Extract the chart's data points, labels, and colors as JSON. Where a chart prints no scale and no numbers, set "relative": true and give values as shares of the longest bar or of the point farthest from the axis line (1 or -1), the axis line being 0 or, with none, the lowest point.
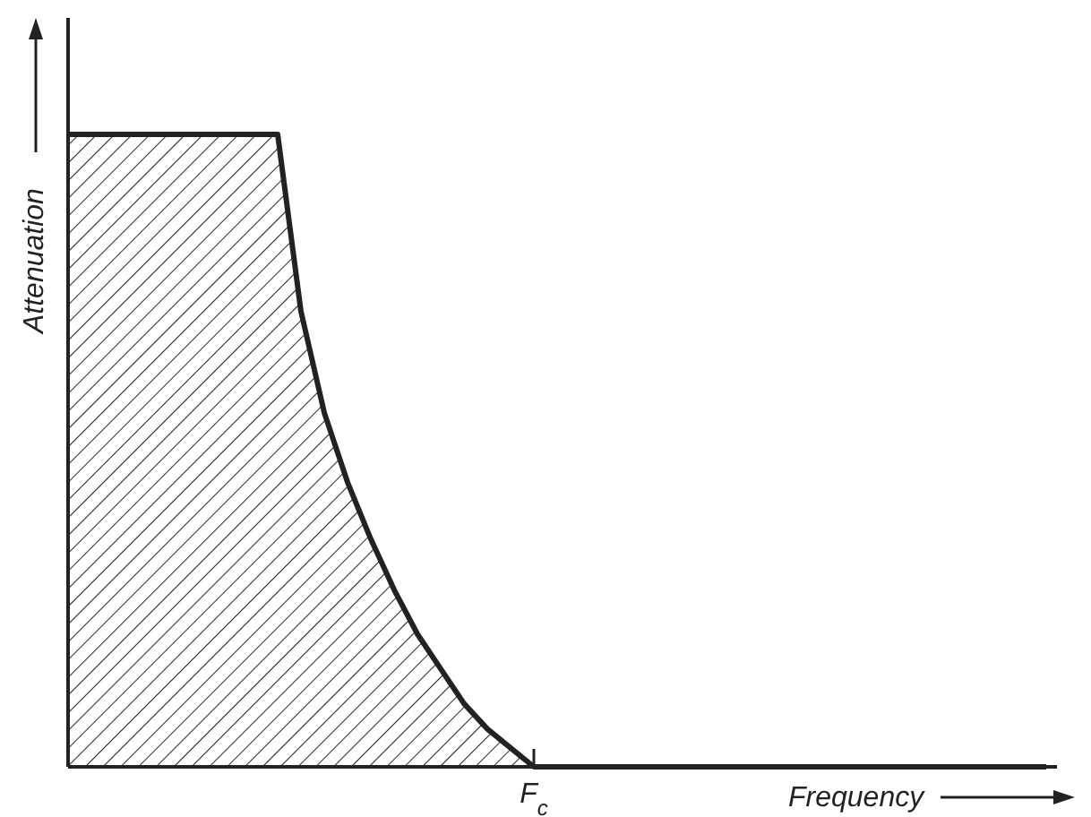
{
  "chart_data": {
    "type": "area",
    "relative": true,
    "xlabel": "Frequency",
    "ylabel": "Attenuation",
    "categories": [
      null,
      null,
      null,
      null,
      null,
      null,
      null,
      null,
      null,
      null,
      null,
      null,
      null,
      null,
      null,
      null,
      null,
      null,
      null,
      null,
      null,
      null,
      null,
      null,
      null,
      null,
      null,
      null,
      null,
      null,
      null,
      null,
      null,
      null,
      null,
      null,
      null,
      null,
      null,
      null,
      null,
      null,
      null
    ],
    "annotations": [
      "F$_{c}$"
    ],
    "series": [
      {
        "color": "#222222",
        "values": [
          1,
          1,
          1,
          1,
          1,
          1,
          1,
          1,
          1,
          1,
          0.72,
          0.56,
          0.45,
          0.36,
          0.28,
          0.21,
          0.155,
          0.1,
          0.06,
          0.03,
          0,
          0,
          0,
          0,
          0,
          0,
          0,
          0,
          0,
          0,
          0,
          0,
          0,
          0,
          0,
          0,
          0,
          0,
          0,
          0,
          0,
          0,
          0
        ]
      }
    ]
  }
}
